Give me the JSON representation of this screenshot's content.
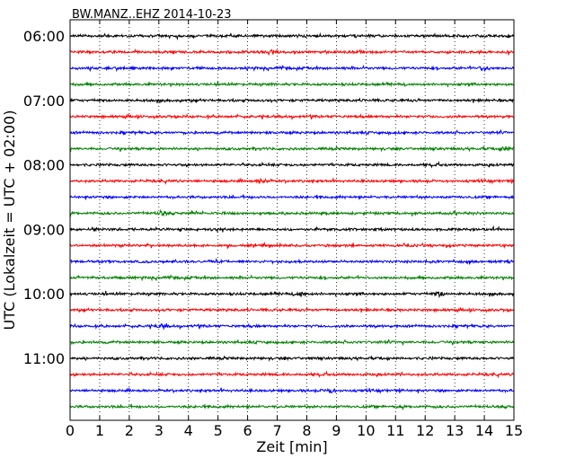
{
  "chart_data": {
    "type": "line",
    "title": "BW.MANZ..EHZ 2014-10-23",
    "xlabel": "Zeit  [min]",
    "ylabel": "UTC (Lokalzeit = UTC + 02:00)",
    "xlim": [
      0,
      15
    ],
    "x_ticks": [
      0,
      1,
      2,
      3,
      4,
      5,
      6,
      7,
      8,
      9,
      10,
      11,
      12,
      13,
      14,
      15
    ],
    "y_ticks": [
      {
        "trace_index": 0,
        "label": "06:00"
      },
      {
        "trace_index": 4,
        "label": "07:00"
      },
      {
        "trace_index": 8,
        "label": "08:00"
      },
      {
        "trace_index": 12,
        "label": "09:00"
      },
      {
        "trace_index": 16,
        "label": "10:00"
      },
      {
        "trace_index": 20,
        "label": "11:00"
      }
    ],
    "grid": {
      "vertical": true,
      "linestyle": "dotted"
    },
    "trace_start_hour": 6,
    "trace_interval_minutes": 15,
    "trace_count": 24,
    "color_cycle": [
      "#000000",
      "#ff0000",
      "#0000ff",
      "#008000"
    ],
    "notable_events": [
      {
        "trace_index": 1,
        "minute": 6.9
      },
      {
        "trace_index": 2,
        "minute": 14.0
      },
      {
        "trace_index": 7,
        "minute": 14.7
      },
      {
        "trace_index": 9,
        "minute": 6.5
      },
      {
        "trace_index": 11,
        "minute": 3.1
      },
      {
        "trace_index": 16,
        "minute": 7.8
      },
      {
        "trace_index": 16,
        "minute": 12.5
      },
      {
        "trace_index": 18,
        "minute": 3.1
      },
      {
        "trace_index": 22,
        "minute": 8.8
      }
    ]
  }
}
